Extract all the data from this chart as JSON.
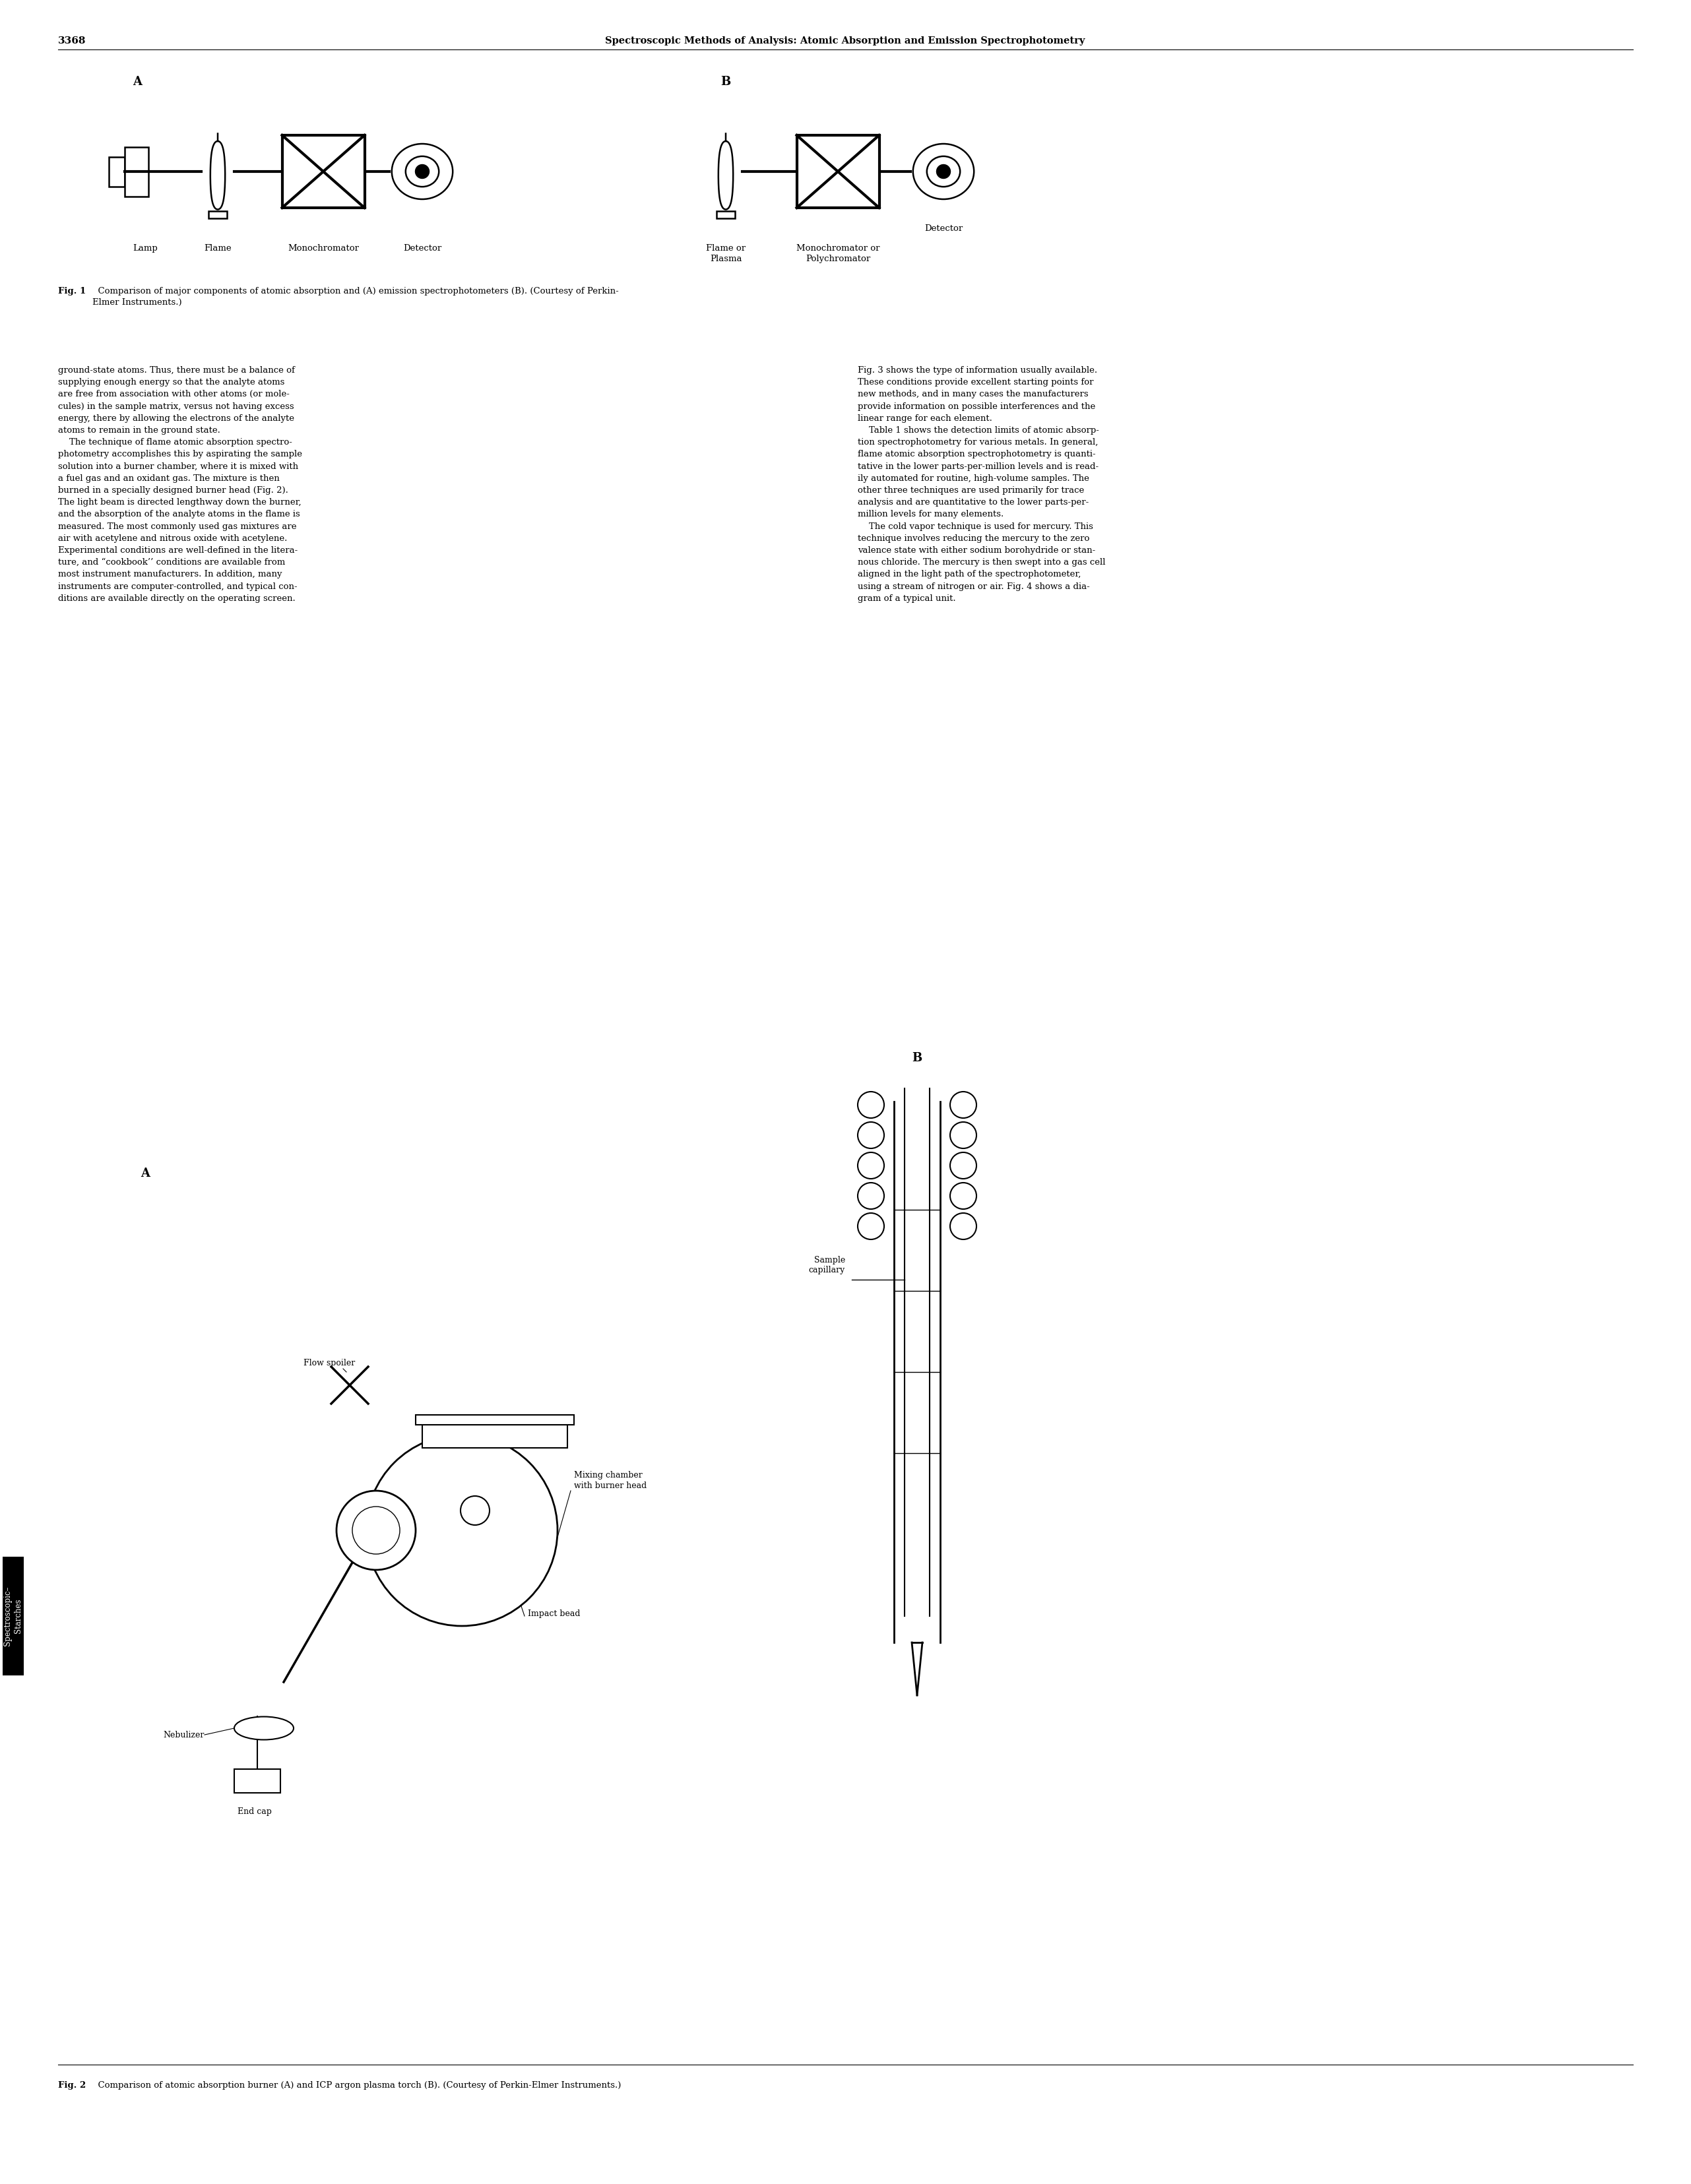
{
  "page_number": "3368",
  "header_title": "Spectroscopic Methods of Analysis: Atomic Absorption and Emission Spectrophotometry",
  "fig1_caption_bold": "Fig. 1",
  "fig1_caption_normal": "  Comparison of major components of atomic absorption and (A) emission spectrophotometers (B). (Courtesy of Perkin-\nElmer Instruments.)",
  "fig2_caption_bold": "Fig. 2",
  "fig2_caption_normal": "  Comparison of atomic absorption burner (A) and ICP argon plasma torch (B). (Courtesy of Perkin-Elmer Instruments.)",
  "label_A": "A",
  "label_B": "B",
  "diagA_lamp_label": "Lamp",
  "diagA_flame_label": "Flame",
  "diagA_mono_label": "Monochromator",
  "diagA_det_label": "Detector",
  "diagB_flame_label": "Flame or\nPlasma",
  "diagB_mono_label": "Monochromator or\nPolychromator",
  "diagB_det_label": "Detector",
  "fig2_labelA": "A",
  "fig2_labelB": "B",
  "ann_flow_spoiler": "Flow spoiler",
  "ann_nebulizer": "Nebulizer",
  "ann_end_cap": "End cap",
  "ann_impact_bead": "Impact bead",
  "ann_mixing": "Mixing chamber\nwith burner head",
  "ann_sample": "Sample\ncapillary",
  "col1_text": "ground-state atoms. Thus, there must be a balance of\nsupplying enough energy so that the analyte atoms\nare free from association with other atoms (or mole-\ncules) in the sample matrix, versus not having excess\nenergy, there by allowing the electrons of the analyte\natoms to remain in the ground state.\n    The technique of flame atomic absorption spectro-\nphotometry accomplishes this by aspirating the sample\nsolution into a burner chamber, where it is mixed with\na fuel gas and an oxidant gas. The mixture is then\nburned in a specially designed burner head (Fig. 2).\nThe light beam is directed lengthway down the burner,\nand the absorption of the analyte atoms in the flame is\nmeasured. The most commonly used gas mixtures are\nair with acetylene and nitrous oxide with acetylene.\nExperimental conditions are well-defined in the litera-\nture, and “cookbook’’ conditions are available from\nmost instrument manufacturers. In addition, many\ninstruments are computer-controlled, and typical con-\nditions are available directly on the operating screen.",
  "col2_text": "Fig. 3 shows the type of information usually available.\nThese conditions provide excellent starting points for\nnew methods, and in many cases the manufacturers\nprovide information on possible interferences and the\nlinear range for each element.\n    Table 1 shows the detection limits of atomic absorp-\ntion spectrophotometry for various metals. In general,\nflame atomic absorption spectrophotometry is quanti-\ntative in the lower parts-per-million levels and is read-\nily automated for routine, high-volume samples. The\nother three techniques are used primarily for trace\nanalysis and are quantitative to the lower parts-per-\nmillion levels for many elements.\n    The cold vapor technique is used for mercury. This\ntechnique involves reducing the mercury to the zero\nvalence state with either sodium borohydride or stan-\nnous chloride. The mercury is then swept into a gas cell\naligned in the light path of the spectrophotometer,\nusing a stream of nitrogen or air. Fig. 4 shows a dia-\ngram of a typical unit.",
  "sidebar_text": "Spectroscopic–\nStarches",
  "background_color": "#ffffff",
  "text_color": "#000000"
}
